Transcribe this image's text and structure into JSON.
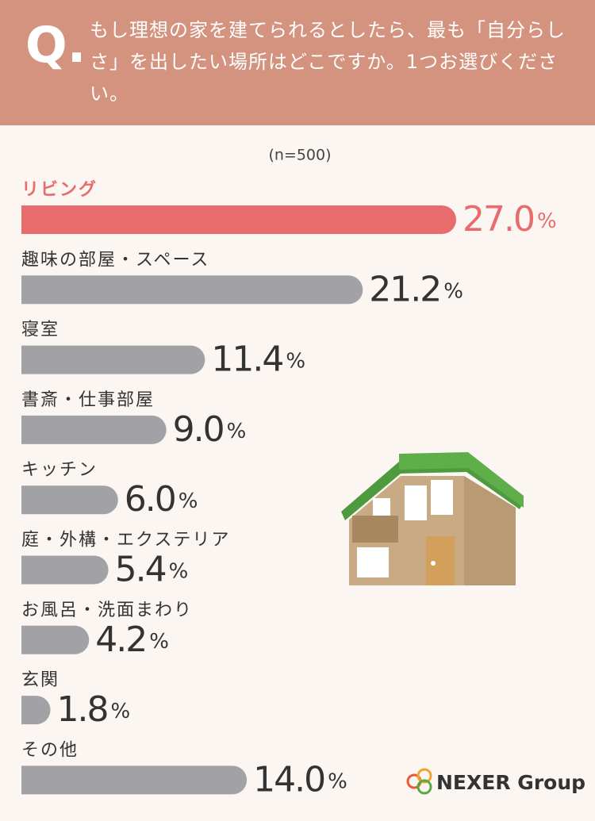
{
  "chart_data": {
    "type": "bar",
    "question_marker": "Q.",
    "title": "もし理想の家を建てられるとしたら、最も「自分らしさ」を出したい場所はどこですか。1つお選びください。",
    "subtitle": "(n=500)",
    "categories": [
      "リビング",
      "趣味の部屋・スペース",
      "寝室",
      "書斎・仕事部屋",
      "キッチン",
      "庭・外構・エクステリア",
      "お風呂・洗面まわり",
      "玄関",
      "その他"
    ],
    "values": [
      27.0,
      21.2,
      11.4,
      9.0,
      6.0,
      5.4,
      4.2,
      1.8,
      14.0
    ],
    "value_labels": [
      "27.0%",
      "21.2%",
      "11.4%",
      "9.0%",
      "6.0%",
      "5.4%",
      "4.2%",
      "1.8%",
      "14.0%"
    ],
    "colors": [
      "#e86c6c",
      "#a2a2a6",
      "#a2a2a6",
      "#a2a2a6",
      "#a2a2a6",
      "#a2a2a6",
      "#a2a2a6",
      "#a2a2a6",
      "#a2a2a6"
    ],
    "label_colors": [
      "#e86c6c",
      "#333333",
      "#333333",
      "#333333",
      "#333333",
      "#333333",
      "#333333",
      "#333333",
      "#333333"
    ],
    "logo": "NEXER Group"
  }
}
